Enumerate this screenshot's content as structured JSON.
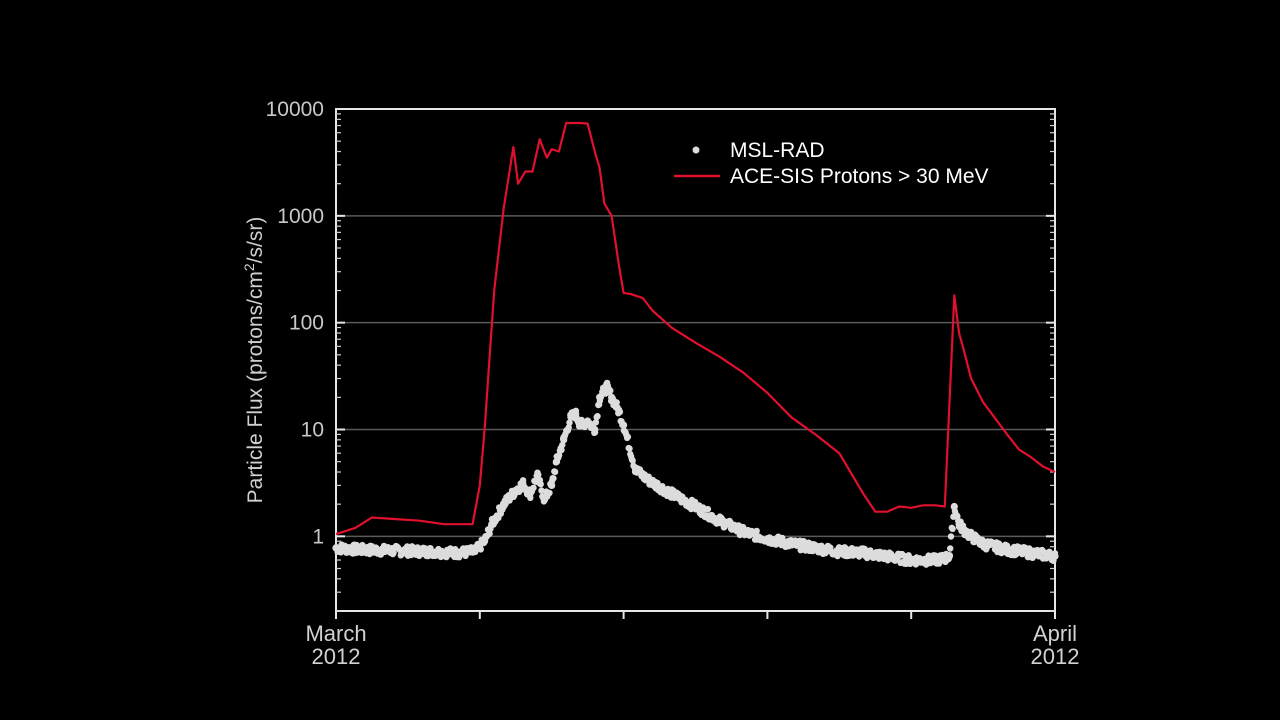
{
  "chart_data": {
    "type": "scatter",
    "xlabel": "",
    "ylabel": "Particle Flux (protons/cm2/s/sr)",
    "ylabel_main": "Particle Flux (protons/cm",
    "ylabel_sup": "2",
    "ylabel_tail": "/s/sr)",
    "yscale": "log",
    "ylim": [
      0.2,
      10000
    ],
    "y_ticks": [
      "10000",
      "1000",
      "100",
      "10",
      "1"
    ],
    "x_unit": "days since March 1 2012",
    "xlim": [
      0,
      30
    ],
    "x_tick_labels": [
      {
        "line1": "March",
        "line2": "2012"
      },
      {
        "line1": "April",
        "line2": "2012"
      }
    ],
    "grid": true,
    "legend_position": "top-right",
    "series": [
      {
        "name": "MSL-RAD",
        "style": "points",
        "color": "#dcdcdc",
        "x": [
          0,
          1,
          2,
          3,
          4,
          5,
          5.8,
          6.2,
          6.5,
          7,
          7.5,
          7.8,
          8.1,
          8.4,
          8.7,
          9.0,
          9.2,
          9.5,
          9.8,
          10.0,
          10.2,
          10.5,
          10.8,
          11.0,
          11.3,
          11.5,
          11.8,
          12.0,
          12.5,
          13,
          14,
          15,
          16,
          17,
          18,
          19,
          20,
          21,
          22,
          23,
          24,
          25,
          25.4,
          25.6,
          25.8,
          26.0,
          26.2,
          26.5,
          27,
          28,
          29,
          30
        ],
        "y": [
          0.78,
          0.75,
          0.74,
          0.73,
          0.72,
          0.7,
          0.72,
          0.9,
          1.3,
          2.0,
          2.7,
          3.1,
          2.5,
          3.7,
          2.2,
          3.0,
          5.0,
          8.0,
          13,
          14,
          11,
          12,
          10,
          20,
          25,
          20,
          15,
          11,
          4.2,
          3.4,
          2.5,
          1.9,
          1.4,
          1.1,
          0.95,
          0.85,
          0.78,
          0.72,
          0.7,
          0.65,
          0.6,
          0.6,
          0.62,
          0.66,
          1.9,
          1.3,
          1.15,
          1.0,
          0.85,
          0.75,
          0.7,
          0.65
        ]
      },
      {
        "name": "ACE-SIS Protons > 30 MeV",
        "style": "line",
        "color": "#e0102e",
        "x": [
          0,
          0.8,
          1.5,
          2.5,
          3.5,
          4.5,
          5.7,
          6.0,
          6.2,
          6.6,
          7.0,
          7.4,
          7.6,
          7.9,
          8.2,
          8.5,
          8.8,
          9.0,
          9.3,
          9.6,
          9.9,
          10.2,
          10.5,
          10.8,
          11.0,
          11.2,
          11.5,
          11.8,
          12.0,
          12.3,
          12.8,
          13.2,
          14,
          15,
          16,
          17,
          18,
          19,
          20,
          21,
          22,
          22.5,
          23,
          23.5,
          24,
          24.5,
          25,
          25.4,
          25.8,
          26.0,
          26.2,
          26.5,
          27,
          28,
          28.5,
          29,
          29.5,
          30
        ],
        "y": [
          1.05,
          1.2,
          1.5,
          1.45,
          1.4,
          1.3,
          1.3,
          3,
          10,
          200,
          1200,
          4400,
          2000,
          2600,
          2600,
          5200,
          3500,
          4200,
          4000,
          7400,
          7400,
          7400,
          7300,
          4000,
          2800,
          1300,
          1000,
          350,
          190,
          185,
          170,
          130,
          90,
          65,
          48,
          34,
          22,
          13,
          9,
          6,
          2.5,
          1.7,
          1.7,
          1.9,
          1.85,
          1.95,
          1.95,
          1.9,
          180,
          80,
          55,
          30,
          18,
          9,
          6.5,
          5.5,
          4.5,
          4.0
        ]
      }
    ]
  }
}
